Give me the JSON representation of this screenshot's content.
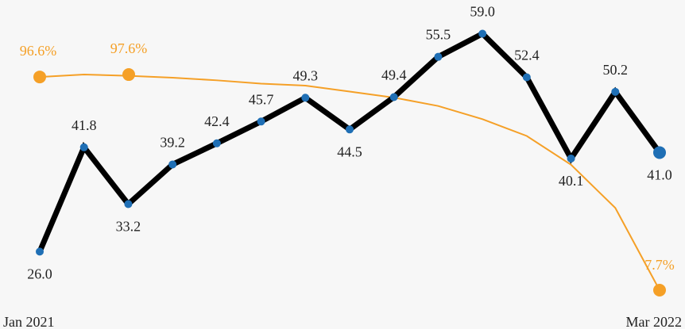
{
  "chart_data": {
    "type": "line",
    "x_start_label": "Jan 2021",
    "x_end_label": "Mar 2022",
    "grid": false,
    "series": [
      {
        "color": "#000000",
        "marker_color": "#1f6fb5",
        "values": [
          26.0,
          41.8,
          33.2,
          39.2,
          42.4,
          45.7,
          49.3,
          44.5,
          49.4,
          55.5,
          59.0,
          52.4,
          40.1,
          50.2,
          41.0
        ],
        "labels": [
          "26.0",
          "41.8",
          "33.2",
          "39.2",
          "42.4",
          "45.7",
          "49.3",
          "44.5",
          "49.4",
          "55.5",
          "59.0",
          "52.4",
          "40.1",
          "50.2",
          "41.0"
        ]
      },
      {
        "color": "#f5a027",
        "values": [
          96.6,
          97.6,
          97.1,
          96.3,
          95.2,
          93.8,
          93.0,
          90.5,
          88.0,
          84.5,
          79.0,
          72.0,
          60.0,
          42.0,
          7.7
        ],
        "labels": [
          "96.6%",
          "97.6%",
          "7.7%"
        ]
      }
    ]
  }
}
